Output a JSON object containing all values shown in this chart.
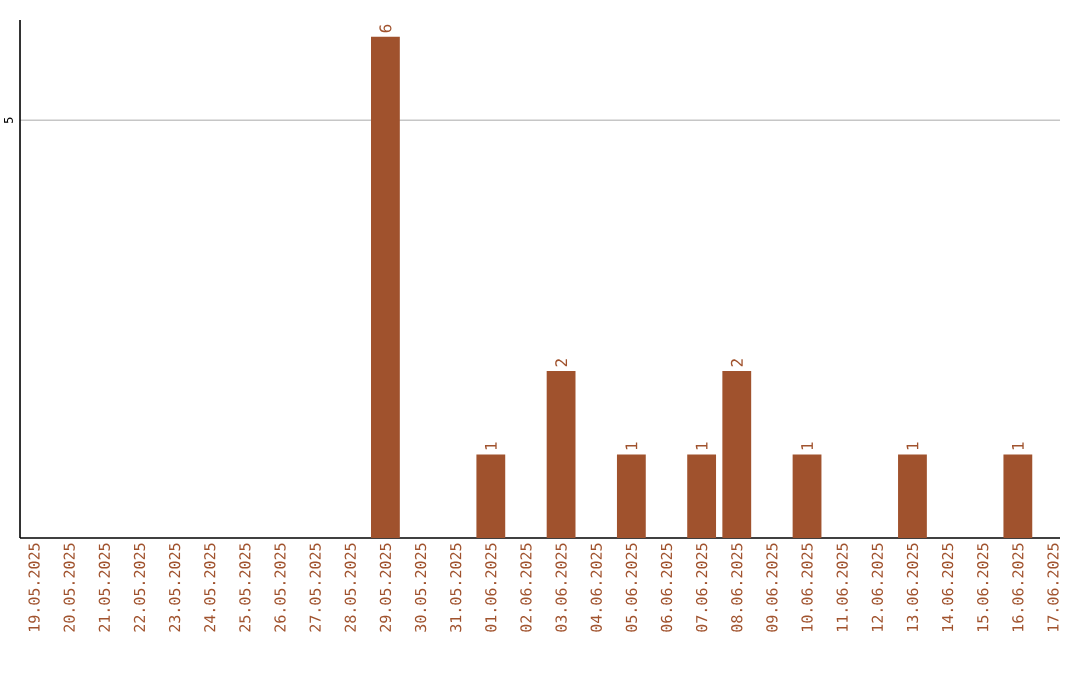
{
  "chart_data": {
    "type": "bar",
    "categories": [
      "19.05.2025",
      "20.05.2025",
      "21.05.2025",
      "22.05.2025",
      "23.05.2025",
      "24.05.2025",
      "25.05.2025",
      "26.05.2025",
      "27.05.2025",
      "28.05.2025",
      "29.05.2025",
      "30.05.2025",
      "31.05.2025",
      "01.06.2025",
      "02.06.2025",
      "03.06.2025",
      "04.06.2025",
      "05.06.2025",
      "06.06.2025",
      "07.06.2025",
      "08.06.2025",
      "09.06.2025",
      "10.06.2025",
      "11.06.2025",
      "12.06.2025",
      "13.06.2025",
      "14.06.2025",
      "15.06.2025",
      "16.06.2025",
      "17.06.2025"
    ],
    "values": [
      0,
      0,
      0,
      0,
      0,
      0,
      0,
      0,
      0,
      0,
      6,
      0,
      0,
      1,
      0,
      2,
      0,
      1,
      0,
      1,
      2,
      0,
      1,
      0,
      0,
      1,
      0,
      0,
      1,
      0
    ],
    "value_labels": [
      null,
      null,
      null,
      null,
      null,
      null,
      null,
      null,
      null,
      null,
      "6",
      null,
      null,
      "1",
      null,
      "2",
      null,
      "1",
      null,
      "1",
      "2",
      null,
      "1",
      null,
      null,
      "1",
      null,
      null,
      "1",
      null
    ],
    "color": "#a0522d",
    "ylim": [
      0,
      6.2
    ],
    "yticks": [
      5
    ],
    "grid": "y"
  }
}
